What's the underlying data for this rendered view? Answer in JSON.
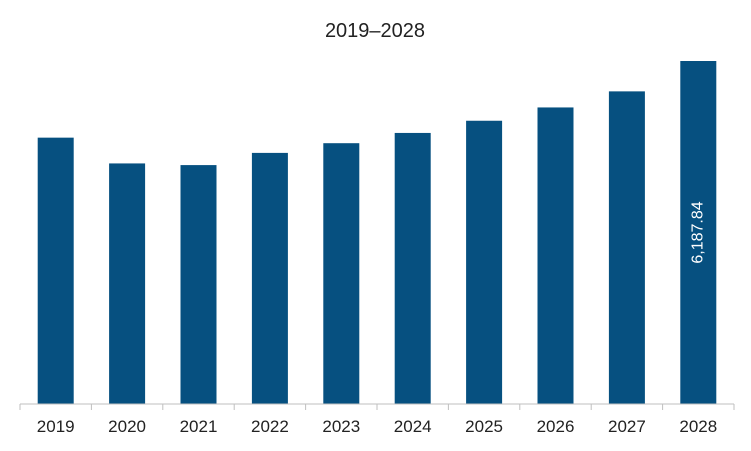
{
  "chart_data": {
    "type": "bar",
    "title": "2019–2028",
    "xlabel": "",
    "ylabel": "",
    "categories": [
      "2019",
      "2020",
      "2021",
      "2022",
      "2023",
      "2024",
      "2025",
      "2026",
      "2027",
      "2028"
    ],
    "values": [
      4805,
      4340,
      4310,
      4530,
      4705,
      4890,
      5110,
      5350,
      5640,
      6187.84
    ],
    "data_labels": [
      "",
      "",
      "",
      "",
      "",
      "",
      "",
      "",
      "",
      "6,187.84"
    ],
    "ylim": [
      0,
      6187.84
    ],
    "bar_color": "#065080",
    "grid": false,
    "legend": "none"
  }
}
